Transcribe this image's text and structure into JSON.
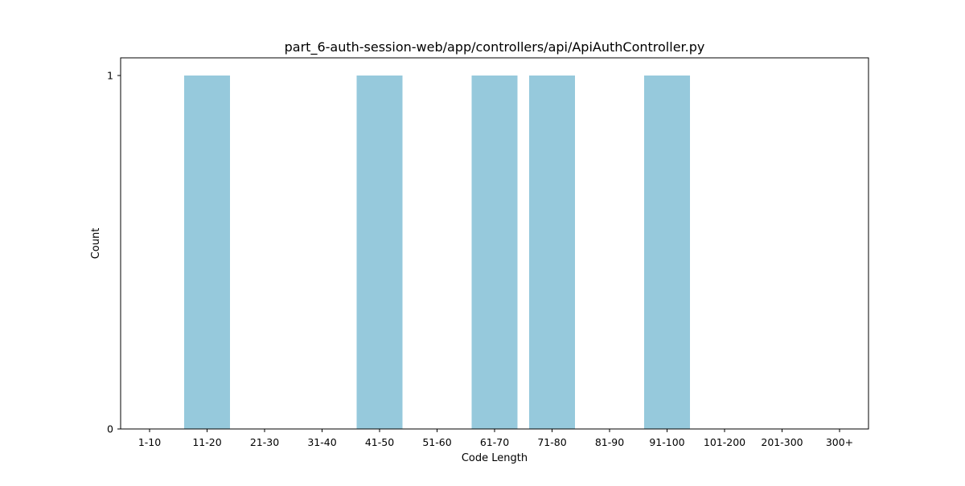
{
  "chart_data": {
    "type": "bar",
    "title": "part_6-auth-session-web/app/controllers/api/ApiAuthController.py",
    "xlabel": "Code Length",
    "ylabel": "Count",
    "categories": [
      "1-10",
      "11-20",
      "21-30",
      "31-40",
      "41-50",
      "51-60",
      "61-70",
      "71-80",
      "81-90",
      "91-100",
      "101-200",
      "201-300",
      "300+"
    ],
    "values": [
      0,
      1,
      0,
      0,
      1,
      0,
      1,
      1,
      0,
      1,
      0,
      0,
      0
    ],
    "yticks": [
      "0",
      "1"
    ],
    "ylim": [
      0,
      1.05
    ],
    "bar_color": "#96c9dc",
    "grid": false,
    "legend": "none"
  }
}
